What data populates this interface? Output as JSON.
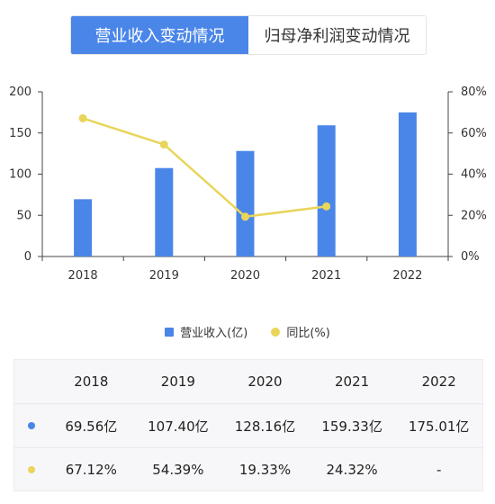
{
  "tabs": [
    {
      "label": "营业收入变动情况",
      "active": true
    },
    {
      "label": "归母净利润变动情况",
      "active": false
    }
  ],
  "colors": {
    "revenue": "#4a86e8",
    "growth": "#e8d55a",
    "tab_active": "#4a86e8"
  },
  "legend": {
    "revenue_label": "营业收入(亿)",
    "growth_label": "同比(%)"
  },
  "table": {
    "years": [
      "2018",
      "2019",
      "2020",
      "2021",
      "2022"
    ],
    "revenue": [
      "69.56亿",
      "107.40亿",
      "128.16亿",
      "159.33亿",
      "175.01亿"
    ],
    "growth": [
      "67.12%",
      "54.39%",
      "19.33%",
      "24.32%",
      "-"
    ]
  },
  "chart_data": {
    "type": "bar",
    "categories": [
      "2018",
      "2019",
      "2020",
      "2021",
      "2022"
    ],
    "series": [
      {
        "name": "营业收入(亿)",
        "type": "bar",
        "axis": "left",
        "values": [
          69.56,
          107.4,
          128.16,
          159.33,
          175.01
        ]
      },
      {
        "name": "同比(%)",
        "type": "line",
        "axis": "right",
        "values": [
          67.12,
          54.39,
          19.33,
          24.32,
          null
        ]
      }
    ],
    "left_axis": {
      "ylim": [
        0,
        200
      ],
      "ticks": [
        0,
        50,
        100,
        150,
        200
      ],
      "tick_labels": [
        "0",
        "50",
        "100",
        "150",
        "200"
      ]
    },
    "right_axis": {
      "ylim": [
        0,
        80
      ],
      "ticks": [
        0,
        20,
        40,
        60,
        80
      ],
      "tick_labels": [
        "0%",
        "20%",
        "40%",
        "60%",
        "80%"
      ]
    },
    "grid": false,
    "legend_position": "bottom"
  }
}
